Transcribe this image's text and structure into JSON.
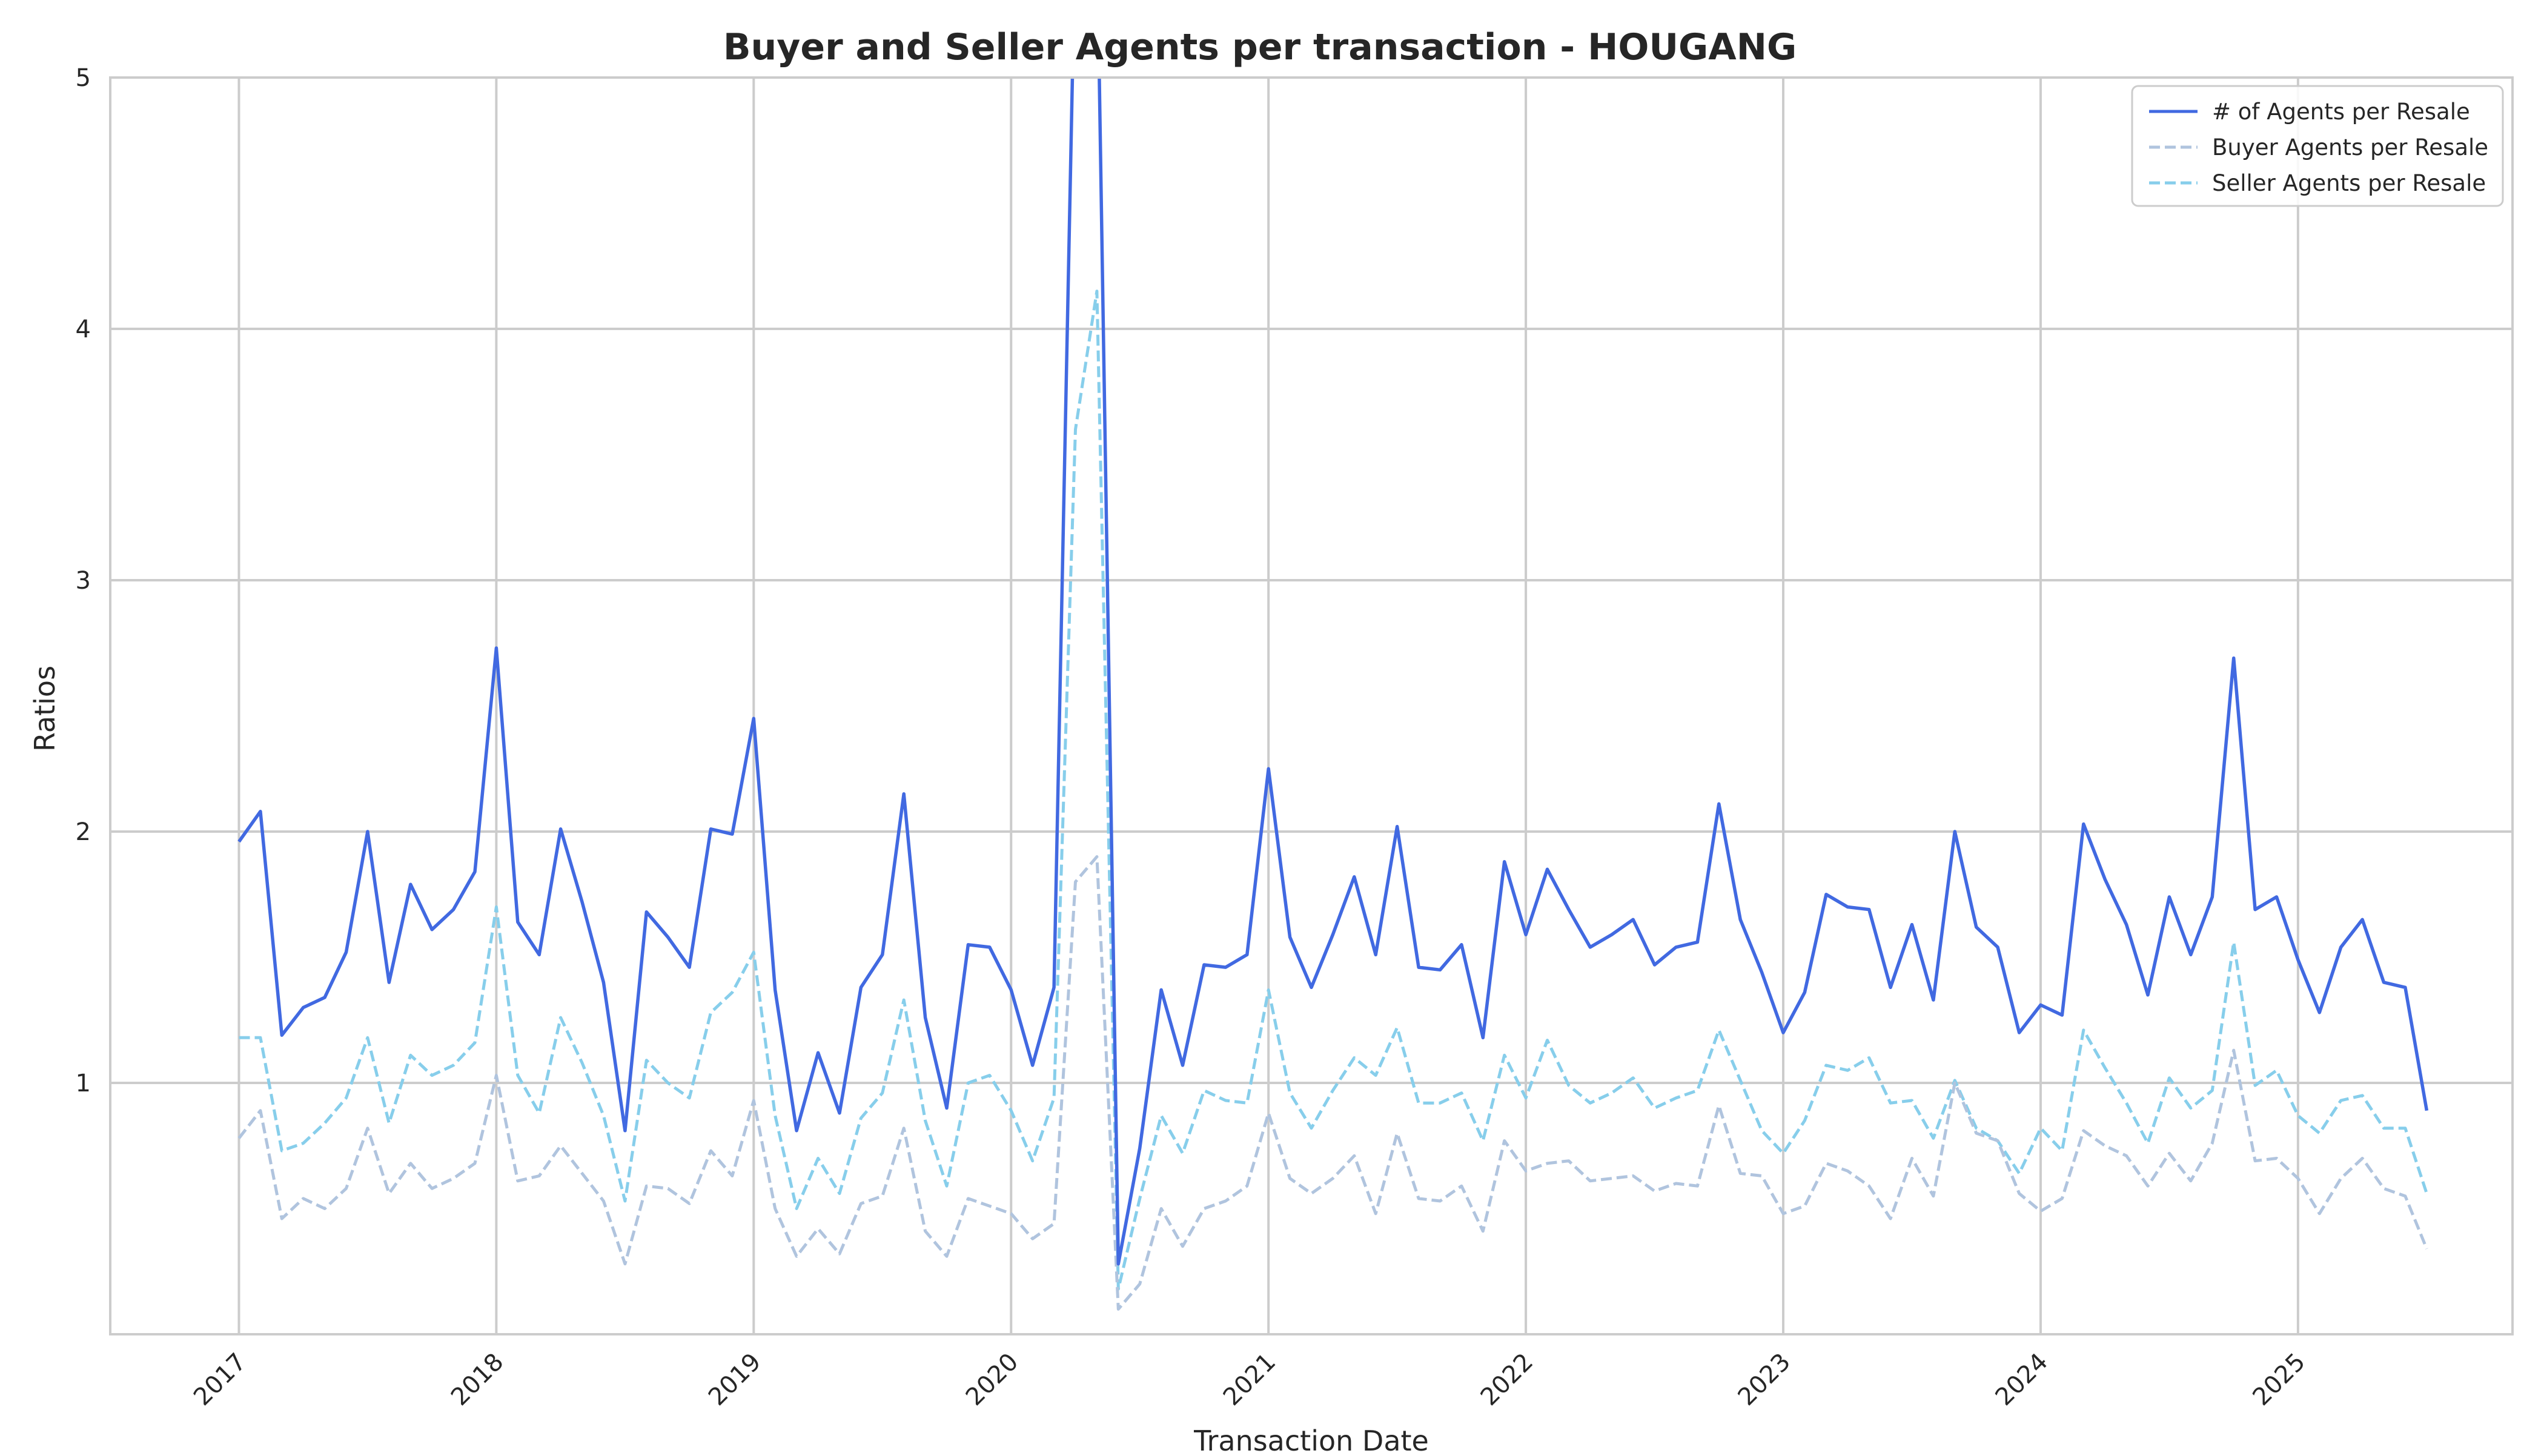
{
  "chart_data": {
    "type": "line",
    "title": "Buyer and Seller Agents per transaction - HOUGANG",
    "xlabel": "Transaction Date",
    "ylabel": "Ratios",
    "x_start": "2017-01",
    "x_interval": "monthly",
    "xlim": [
      "2016-07",
      "2025-11"
    ],
    "ylim": [
      0,
      5
    ],
    "x_ticks": [
      "2017",
      "2018",
      "2019",
      "2020",
      "2021",
      "2022",
      "2023",
      "2024",
      "2025"
    ],
    "y_ticks": [
      "1",
      "2",
      "3",
      "4",
      "5"
    ],
    "grid": true,
    "legend_position": "top-right",
    "series": [
      {
        "name": "# of Agents per Resale",
        "color": "#4169e1",
        "style": "solid",
        "values": [
          1.96,
          2.08,
          1.19,
          1.3,
          1.34,
          1.52,
          2.0,
          1.4,
          1.79,
          1.61,
          1.69,
          1.84,
          2.73,
          1.64,
          1.51,
          2.01,
          1.72,
          1.4,
          0.81,
          1.68,
          1.58,
          1.46,
          2.01,
          1.99,
          2.45,
          1.37,
          0.81,
          1.12,
          0.88,
          1.38,
          1.51,
          2.15,
          1.26,
          0.9,
          1.55,
          1.54,
          1.37,
          1.07,
          1.38,
          5.6,
          5.6,
          0.28,
          0.74,
          1.37,
          1.07,
          1.47,
          1.46,
          1.51,
          2.25,
          1.58,
          1.38,
          1.59,
          1.82,
          1.51,
          2.02,
          1.46,
          1.45,
          1.55,
          1.18,
          1.88,
          1.59,
          1.85,
          1.69,
          1.54,
          1.59,
          1.65,
          1.47,
          1.54,
          1.56,
          2.11,
          1.65,
          1.44,
          1.2,
          1.36,
          1.75,
          1.7,
          1.69,
          1.38,
          1.63,
          1.33,
          2.0,
          1.62,
          1.54,
          1.2,
          1.31,
          1.27,
          2.03,
          1.81,
          1.63,
          1.35,
          1.74,
          1.51,
          1.74,
          2.69,
          1.69,
          1.74,
          1.49,
          1.28,
          1.54,
          1.65,
          1.4,
          1.38,
          0.89
        ]
      },
      {
        "name": "Buyer Agents per Resale",
        "color": "#b0c4de",
        "style": "dashed",
        "values": [
          0.78,
          0.89,
          0.46,
          0.54,
          0.5,
          0.58,
          0.82,
          0.56,
          0.68,
          0.58,
          0.62,
          0.68,
          1.03,
          0.61,
          0.63,
          0.75,
          0.64,
          0.53,
          0.28,
          0.59,
          0.58,
          0.52,
          0.73,
          0.63,
          0.93,
          0.5,
          0.31,
          0.42,
          0.32,
          0.52,
          0.55,
          0.82,
          0.41,
          0.31,
          0.54,
          0.51,
          0.48,
          0.38,
          0.44,
          1.8,
          1.9,
          0.1,
          0.2,
          0.5,
          0.35,
          0.5,
          0.53,
          0.59,
          0.88,
          0.62,
          0.56,
          0.62,
          0.71,
          0.48,
          0.8,
          0.54,
          0.53,
          0.59,
          0.41,
          0.77,
          0.65,
          0.68,
          0.69,
          0.61,
          0.62,
          0.63,
          0.57,
          0.6,
          0.59,
          0.91,
          0.64,
          0.63,
          0.48,
          0.51,
          0.68,
          0.65,
          0.59,
          0.46,
          0.7,
          0.55,
          1.0,
          0.8,
          0.77,
          0.56,
          0.49,
          0.54,
          0.81,
          0.75,
          0.71,
          0.59,
          0.72,
          0.61,
          0.76,
          1.13,
          0.69,
          0.7,
          0.62,
          0.48,
          0.62,
          0.7,
          0.58,
          0.55,
          0.34
        ]
      },
      {
        "name": "Seller Agents per Resale",
        "color": "#87ceeb",
        "style": "dashed",
        "values": [
          1.18,
          1.18,
          0.73,
          0.76,
          0.84,
          0.94,
          1.18,
          0.84,
          1.11,
          1.03,
          1.07,
          1.16,
          1.7,
          1.03,
          0.88,
          1.26,
          1.08,
          0.87,
          0.53,
          1.09,
          1.0,
          0.94,
          1.28,
          1.36,
          1.52,
          0.87,
          0.5,
          0.7,
          0.56,
          0.86,
          0.96,
          1.33,
          0.85,
          0.59,
          1.0,
          1.03,
          0.89,
          0.69,
          0.94,
          3.6,
          4.15,
          0.18,
          0.54,
          0.87,
          0.72,
          0.97,
          0.93,
          0.92,
          1.37,
          0.96,
          0.82,
          0.97,
          1.1,
          1.03,
          1.22,
          0.92,
          0.92,
          0.96,
          0.77,
          1.11,
          0.94,
          1.17,
          0.99,
          0.92,
          0.96,
          1.02,
          0.9,
          0.94,
          0.97,
          1.21,
          1.01,
          0.81,
          0.72,
          0.85,
          1.07,
          1.05,
          1.1,
          0.92,
          0.93,
          0.78,
          1.01,
          0.82,
          0.77,
          0.64,
          0.82,
          0.73,
          1.21,
          1.06,
          0.92,
          0.76,
          1.02,
          0.9,
          0.97,
          1.56,
          0.99,
          1.05,
          0.87,
          0.8,
          0.93,
          0.95,
          0.82,
          0.82,
          0.56
        ]
      }
    ]
  }
}
